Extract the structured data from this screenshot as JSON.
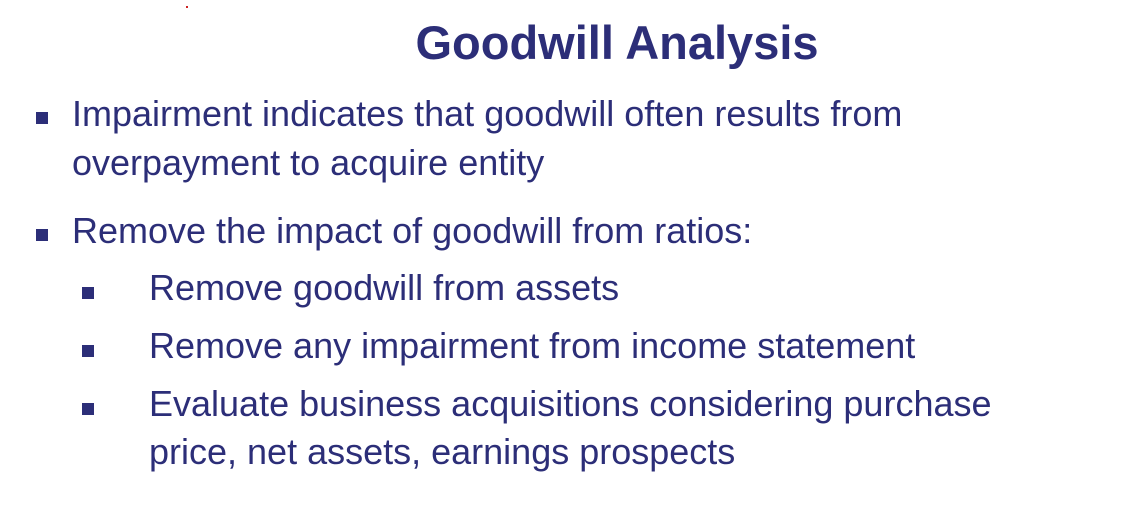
{
  "slide": {
    "title": "Goodwill Analysis",
    "bullets": [
      {
        "lines": [
          "Impairment indicates that goodwill often results from",
          "overpayment to acquire entity"
        ]
      },
      {
        "lines": [
          "Remove the impact of goodwill from ratios:"
        ],
        "sub_bullets": [
          {
            "lines": [
              "Remove goodwill from assets"
            ]
          },
          {
            "lines": [
              "Remove any impairment from income statement"
            ]
          },
          {
            "lines": [
              "Evaluate business acquisitions considering purchase",
              "price, net assets, earnings prospects"
            ]
          }
        ]
      }
    ]
  },
  "colors": {
    "text": "#2c2e78",
    "background": "#ffffff"
  },
  "icons": {
    "bullet": "square-bullet-icon"
  }
}
